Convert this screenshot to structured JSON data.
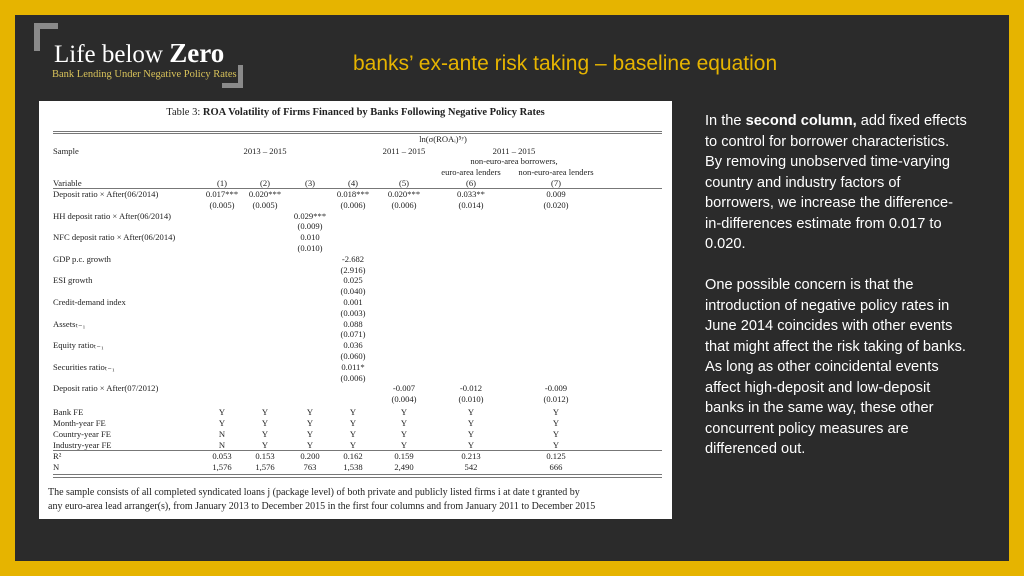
{
  "logo": {
    "title_light": "Life below ",
    "title_bold": "Zero",
    "subtitle": "Bank Lending Under Negative Policy Rates"
  },
  "slide_title": "banks’ ex-ante risk taking – baseline equation",
  "colors": {
    "frame": "#e6b400",
    "background": "#2b2b2b",
    "title": "#e6b400",
    "logo_subtitle": "#d8c25a"
  },
  "table": {
    "caption_prefix": "Table 3: ",
    "caption_bold": "ROA Volatility of Firms Financed by Banks Following Negative Policy Rates",
    "dependent": "ln(σ(ROAᵢ)⁵ʸ)",
    "sample_label": "Sample",
    "sample_groups": [
      "2013 – 2015",
      "2011 – 2015",
      "2011 – 2015"
    ],
    "subgroup_top": "non-euro-area borrowers,",
    "subgroup_6": "euro-area lenders",
    "subgroup_7": "non-euro-area lenders",
    "variable_label": "Variable",
    "col_numbers": [
      "(1)",
      "(2)",
      "(3)",
      "(4)",
      "(5)",
      "(6)",
      "(7)"
    ],
    "rows": [
      {
        "label": "Deposit ratio × After(06/2014)",
        "coef": [
          "0.017***",
          "0.020***",
          "",
          "0.018***",
          "0.020***",
          "0.033**",
          "0.009"
        ],
        "se": [
          "(0.005)",
          "(0.005)",
          "",
          "(0.006)",
          "(0.006)",
          "(0.014)",
          "(0.020)"
        ]
      },
      {
        "label": "HH deposit ratio × After(06/2014)",
        "coef": [
          "",
          "",
          "0.029***",
          "",
          "",
          "",
          ""
        ],
        "se": [
          "",
          "",
          "(0.009)",
          "",
          "",
          "",
          ""
        ]
      },
      {
        "label": "NFC deposit ratio × After(06/2014)",
        "coef": [
          "",
          "",
          "0.010",
          "",
          "",
          "",
          ""
        ],
        "se": [
          "",
          "",
          "(0.010)",
          "",
          "",
          "",
          ""
        ]
      },
      {
        "label": "GDP p.c. growth",
        "coef": [
          "",
          "",
          "",
          "-2.682",
          "",
          "",
          ""
        ],
        "se": [
          "",
          "",
          "",
          "(2.916)",
          "",
          "",
          ""
        ]
      },
      {
        "label": "ESI growth",
        "coef": [
          "",
          "",
          "",
          "0.025",
          "",
          "",
          ""
        ],
        "se": [
          "",
          "",
          "",
          "(0.040)",
          "",
          "",
          ""
        ]
      },
      {
        "label": "Credit-demand index",
        "coef": [
          "",
          "",
          "",
          "0.001",
          "",
          "",
          ""
        ],
        "se": [
          "",
          "",
          "",
          "(0.003)",
          "",
          "",
          ""
        ]
      },
      {
        "label": "Assetsₜ₋₁",
        "coef": [
          "",
          "",
          "",
          "0.088",
          "",
          "",
          ""
        ],
        "se": [
          "",
          "",
          "",
          "(0.071)",
          "",
          "",
          ""
        ]
      },
      {
        "label": "Equity ratioₜ₋₁",
        "coef": [
          "",
          "",
          "",
          "0.036",
          "",
          "",
          ""
        ],
        "se": [
          "",
          "",
          "",
          "(0.060)",
          "",
          "",
          ""
        ]
      },
      {
        "label": "Securities ratioₜ₋₁",
        "coef": [
          "",
          "",
          "",
          "0.011*",
          "",
          "",
          ""
        ],
        "se": [
          "",
          "",
          "",
          "(0.006)",
          "",
          "",
          ""
        ]
      },
      {
        "label": "Deposit ratio × After(07/2012)",
        "coef": [
          "",
          "",
          "",
          "",
          "-0.007",
          "-0.012",
          "-0.009"
        ],
        "se": [
          "",
          "",
          "",
          "",
          "(0.004)",
          "(0.010)",
          "(0.012)"
        ]
      }
    ],
    "fe_rows": [
      {
        "label": "Bank FE",
        "values": [
          "Y",
          "Y",
          "Y",
          "Y",
          "Y",
          "Y",
          "Y"
        ]
      },
      {
        "label": "Month-year FE",
        "values": [
          "Y",
          "Y",
          "Y",
          "Y",
          "Y",
          "Y",
          "Y"
        ]
      },
      {
        "label": "Country-year FE",
        "values": [
          "N",
          "Y",
          "Y",
          "Y",
          "Y",
          "Y",
          "Y"
        ]
      },
      {
        "label": "Industry-year FE",
        "values": [
          "N",
          "Y",
          "Y",
          "Y",
          "Y",
          "Y",
          "Y"
        ]
      }
    ],
    "stat_rows": [
      {
        "label": "R²",
        "values": [
          "0.053",
          "0.153",
          "0.200",
          "0.162",
          "0.159",
          "0.213",
          "0.125"
        ]
      },
      {
        "label": "N",
        "values": [
          "1,576",
          "1,576",
          "763",
          "1,538",
          "2,490",
          "542",
          "666"
        ]
      }
    ],
    "footnote": [
      "The sample consists of all completed syndicated loans j (package level) of both private and publicly listed firms i at date t granted by",
      "any euro-area lead arranger(s), from January 2013 to December 2015 in the first four columns and from January 2011 to December 2015"
    ]
  },
  "side": {
    "p1_before": "In the ",
    "p1_bold": "second column,",
    "p1_after": " add fixed effects to control for borrower characteristics. By removing unobserved time-varying country and industry factors of borrowers, we increase the difference-in-differences estimate from 0.017 to 0.020.",
    "p2": "One possible concern is that the introduction of negative policy rates in June 2014 coincides with other events that might affect the risk taking of banks. As long as other coincidental events affect high-deposit and low-deposit banks in the same way, these other concurrent policy measures are differenced out."
  }
}
